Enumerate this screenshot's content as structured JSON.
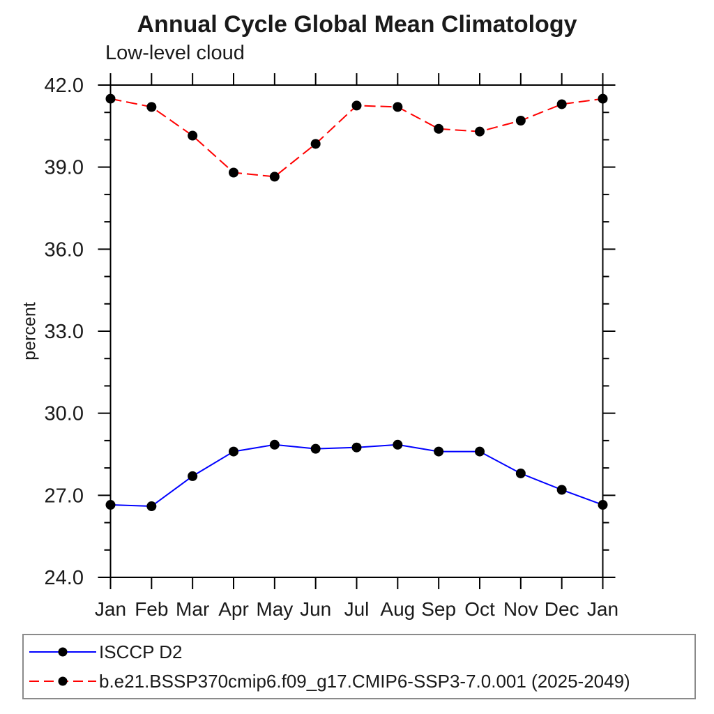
{
  "chart_data": {
    "type": "line",
    "title": "Annual Cycle Global Mean Climatology",
    "subtitle": "Low-level cloud",
    "ylabel": "percent",
    "categories": [
      "Jan",
      "Feb",
      "Mar",
      "Apr",
      "May",
      "Jun",
      "Jul",
      "Aug",
      "Sep",
      "Oct",
      "Nov",
      "Dec",
      "Jan"
    ],
    "ylim": [
      24.0,
      42.0
    ],
    "ytick_major": [
      24.0,
      27.0,
      30.0,
      33.0,
      36.0,
      39.0,
      42.0
    ],
    "ytick_labels": [
      "24.0",
      "27.0",
      "30.0",
      "33.0",
      "36.0",
      "39.0",
      "42.0"
    ],
    "ytick_minor_step": 1.0,
    "grid": false,
    "legend_position": "bottom-left",
    "series": [
      {
        "name": "ISCCP D2",
        "color": "#0000ff",
        "line_style": "solid",
        "marker": "filled-circle",
        "marker_color": "#000000",
        "values": [
          26.65,
          26.6,
          27.7,
          28.6,
          28.85,
          28.7,
          28.75,
          28.85,
          28.6,
          28.6,
          27.8,
          27.2,
          26.65
        ]
      },
      {
        "name": "b.e21.BSSP370cmip6.f09_g17.CMIP6-SSP3-7.0.001 (2025-2049)",
        "color": "#ff0000",
        "line_style": "dashed",
        "marker": "filled-circle",
        "marker_color": "#000000",
        "values": [
          41.5,
          41.2,
          40.15,
          38.8,
          38.65,
          39.85,
          41.25,
          41.2,
          40.4,
          40.3,
          40.7,
          41.3,
          41.5
        ]
      }
    ]
  },
  "colors": {
    "axis": "#000000",
    "background": "#ffffff",
    "legend_border": "#8a8a8a"
  }
}
